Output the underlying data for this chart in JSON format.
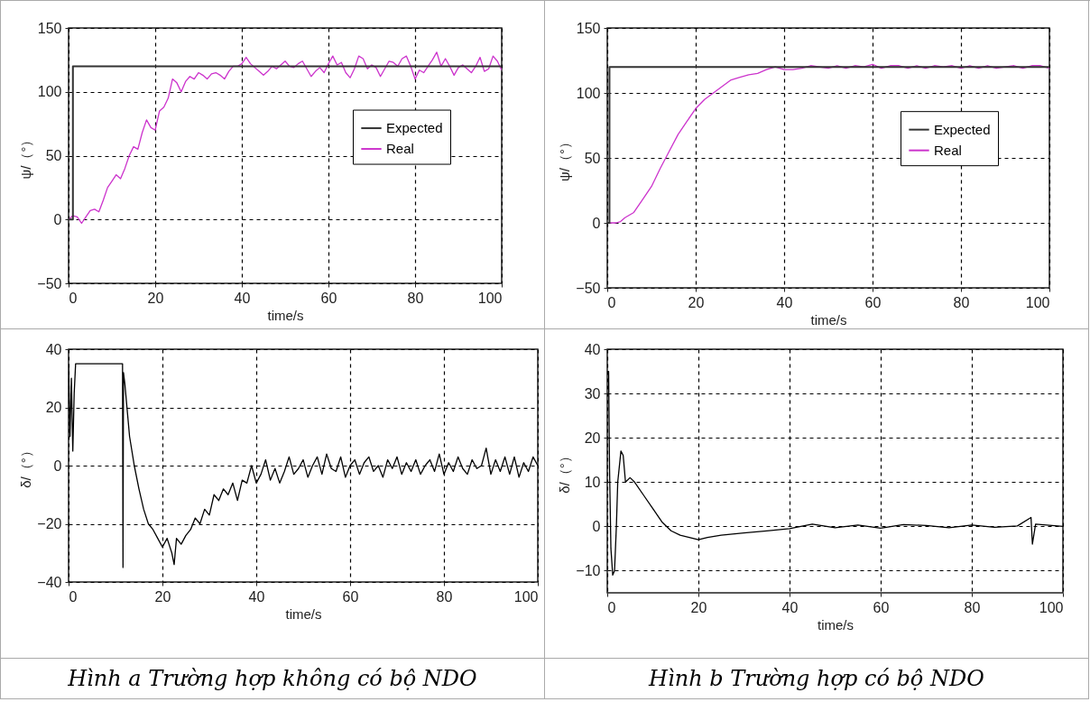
{
  "chart_data": [
    {
      "type": "line",
      "xlabel": "time/s",
      "ylabel": "ψ/（°）",
      "xlim": [
        0,
        100
      ],
      "ylim": [
        -50,
        150
      ],
      "xticks": [
        0,
        20,
        40,
        60,
        80,
        100
      ],
      "yticks": [
        -50,
        0,
        50,
        100,
        150
      ],
      "grid": true,
      "legend": "right",
      "line_style": "solid",
      "series": [
        {
          "name": "Expected",
          "type": "step",
          "color": "#333333",
          "x": [
            0,
            1,
            20,
            40,
            60,
            80,
            100
          ],
          "values": [
            0,
            120,
            120,
            120,
            120,
            120,
            120
          ]
        },
        {
          "name": "Real",
          "color": "#cc33cc",
          "x": [
            0,
            1,
            2,
            3,
            4,
            5,
            6,
            7,
            8,
            9,
            10,
            11,
            12,
            13,
            14,
            15,
            16,
            17,
            18,
            19,
            20,
            21,
            22,
            23,
            24,
            25,
            26,
            27,
            28,
            29,
            30,
            31,
            32,
            33,
            34,
            35,
            36,
            37,
            38,
            39,
            40,
            41,
            42,
            43,
            44,
            45,
            46,
            47,
            48,
            49,
            50,
            51,
            52,
            53,
            54,
            55,
            56,
            57,
            58,
            59,
            60,
            61,
            62,
            63,
            64,
            65,
            66,
            67,
            68,
            69,
            70,
            71,
            72,
            73,
            74,
            75,
            76,
            77,
            78,
            79,
            80,
            81,
            82,
            83,
            84,
            85,
            86,
            87,
            88,
            89,
            90,
            91,
            92,
            93,
            94,
            95,
            96,
            97,
            98,
            99,
            100
          ],
          "values": [
            0,
            3,
            2,
            -3,
            2,
            7,
            8,
            6,
            15,
            25,
            30,
            35,
            32,
            40,
            50,
            57,
            55,
            68,
            78,
            72,
            70,
            85,
            88,
            95,
            110,
            107,
            100,
            108,
            112,
            110,
            115,
            113,
            110,
            114,
            115,
            113,
            110,
            116,
            120,
            120,
            122,
            127,
            122,
            119,
            116,
            113,
            116,
            120,
            118,
            121,
            124,
            120,
            119,
            122,
            124,
            118,
            112,
            116,
            119,
            115,
            122,
            128,
            121,
            123,
            115,
            111,
            118,
            128,
            126,
            118,
            121,
            119,
            112,
            118,
            124,
            123,
            120,
            126,
            128,
            120,
            110,
            117,
            115,
            120,
            125,
            131,
            120,
            126,
            120,
            113,
            119,
            121,
            118,
            115,
            120,
            127,
            116,
            118,
            128,
            124,
            117
          ]
        }
      ]
    },
    {
      "type": "line",
      "xlabel": "time/s",
      "ylabel": "ψ/（°）",
      "xlim": [
        0,
        100
      ],
      "ylim": [
        -50,
        150
      ],
      "xticks": [
        0,
        20,
        40,
        60,
        80,
        100
      ],
      "yticks": [
        -50,
        0,
        50,
        100,
        150
      ],
      "grid": true,
      "legend": "right",
      "line_style": "solid",
      "series": [
        {
          "name": "Expected",
          "type": "step",
          "color": "#333333",
          "x": [
            0,
            0.5,
            20,
            40,
            60,
            80,
            100
          ],
          "values": [
            0,
            120,
            120,
            120,
            120,
            120,
            120
          ]
        },
        {
          "name": "Real",
          "color": "#cc33cc",
          "x": [
            0,
            2,
            3,
            4,
            6,
            8,
            10,
            12,
            14,
            16,
            18,
            20,
            22,
            24,
            26,
            28,
            30,
            32,
            34,
            36,
            38,
            40,
            42,
            44,
            46,
            50,
            52,
            54,
            56,
            58,
            60,
            62,
            64,
            66,
            68,
            70,
            72,
            74,
            76,
            78,
            80,
            82,
            84,
            86,
            88,
            90,
            92,
            94,
            96,
            98,
            100
          ],
          "values": [
            0,
            0,
            1,
            4,
            8,
            18,
            28,
            42,
            55,
            68,
            78,
            88,
            95,
            100,
            105,
            110,
            112,
            114,
            115,
            118,
            120,
            118,
            118,
            119,
            121,
            119,
            121,
            119,
            121,
            120,
            122,
            119,
            121,
            121,
            119,
            121,
            119,
            121,
            120,
            121,
            119,
            121,
            119,
            121,
            119,
            120,
            121,
            119,
            121,
            121,
            119
          ]
        }
      ]
    },
    {
      "type": "line",
      "xlabel": "time/s",
      "ylabel": "δ/（°）",
      "xlim": [
        0,
        100
      ],
      "ylim": [
        -40,
        40
      ],
      "xticks": [
        0,
        20,
        40,
        60,
        80,
        100
      ],
      "yticks": [
        -40,
        -20,
        0,
        20,
        40
      ],
      "grid": true,
      "line_style": "solid",
      "annotations": [
        "Hình a Trường hợp không có bộ NDO"
      ],
      "series": [
        {
          "color": "#000000",
          "x": [
            0,
            0.3,
            0.6,
            0.9,
            1.2,
            1.5,
            11.5,
            11.6,
            11.7,
            12,
            13,
            14,
            15,
            16,
            17,
            18,
            19,
            20,
            21,
            22,
            22.5,
            23,
            24,
            25,
            26,
            27,
            28,
            29,
            30,
            31,
            32,
            33,
            34,
            35,
            36,
            37,
            38,
            39,
            40,
            41,
            42,
            43,
            44,
            45,
            46,
            47,
            48,
            49,
            50,
            51,
            52,
            53,
            54,
            55,
            56,
            57,
            58,
            59,
            60,
            61,
            62,
            63,
            64,
            65,
            66,
            67,
            68,
            69,
            70,
            71,
            72,
            73,
            74,
            75,
            76,
            77,
            78,
            79,
            80,
            81,
            82,
            83,
            84,
            85,
            86,
            87,
            88,
            89,
            90,
            91,
            92,
            93,
            94,
            95,
            96,
            97,
            98,
            99,
            100
          ],
          "values": [
            35,
            10,
            30,
            5,
            25,
            35,
            35,
            -35,
            32,
            28,
            10,
            0,
            -8,
            -15,
            -20,
            -22,
            -25,
            -28,
            -25,
            -30,
            -34,
            -25,
            -27,
            -24,
            -22,
            -18,
            -20,
            -15,
            -17,
            -10,
            -12,
            -8,
            -10,
            -6,
            -12,
            -5,
            -6,
            0,
            -6,
            -3,
            2,
            -5,
            -1,
            -6,
            -2,
            3,
            -3,
            -1,
            2,
            -4,
            0,
            3,
            -3,
            4,
            -1,
            -2,
            3,
            -4,
            0,
            2,
            -3,
            1,
            3,
            -2,
            0,
            -4,
            2,
            -1,
            3,
            -3,
            1,
            -2,
            2,
            -3,
            0,
            2,
            -2,
            4,
            -3,
            1,
            -2,
            3,
            -1,
            -3,
            2,
            -1,
            0,
            6,
            -3,
            2,
            -2,
            3,
            -3,
            3,
            -4,
            1,
            -2,
            3,
            0
          ]
        }
      ]
    },
    {
      "type": "line",
      "xlabel": "time/s",
      "ylabel": "δ/（°）",
      "xlim": [
        0,
        100
      ],
      "ylim": [
        -15,
        40
      ],
      "xticks": [
        0,
        20,
        40,
        60,
        80,
        100
      ],
      "yticks": [
        -10,
        0,
        10,
        20,
        30,
        40
      ],
      "grid": true,
      "line_style": "solid",
      "annotations": [
        "Hình b Trường hợp có bộ NDO"
      ],
      "series": [
        {
          "color": "#000000",
          "x": [
            0,
            0.3,
            0.5,
            0.8,
            1.2,
            1.6,
            2,
            2.3,
            3,
            3.5,
            4,
            5,
            6,
            8,
            10,
            12,
            14,
            16,
            18,
            20,
            22,
            25,
            30,
            35,
            40,
            45,
            50,
            55,
            60,
            65,
            70,
            75,
            80,
            85,
            90,
            93,
            93.3,
            94,
            100
          ],
          "values": [
            35,
            35,
            13,
            -5,
            -11,
            -10,
            0,
            10,
            17,
            16,
            10,
            11,
            10,
            7,
            4,
            1,
            -1,
            -2,
            -2.5,
            -3,
            -2.5,
            -2,
            -1.5,
            -1,
            -0.5,
            0.5,
            -0.3,
            0.3,
            -0.4,
            0.4,
            0.2,
            -0.3,
            0.3,
            -0.2,
            0.1,
            2,
            -4,
            0.5,
            0
          ]
        }
      ]
    }
  ]
}
